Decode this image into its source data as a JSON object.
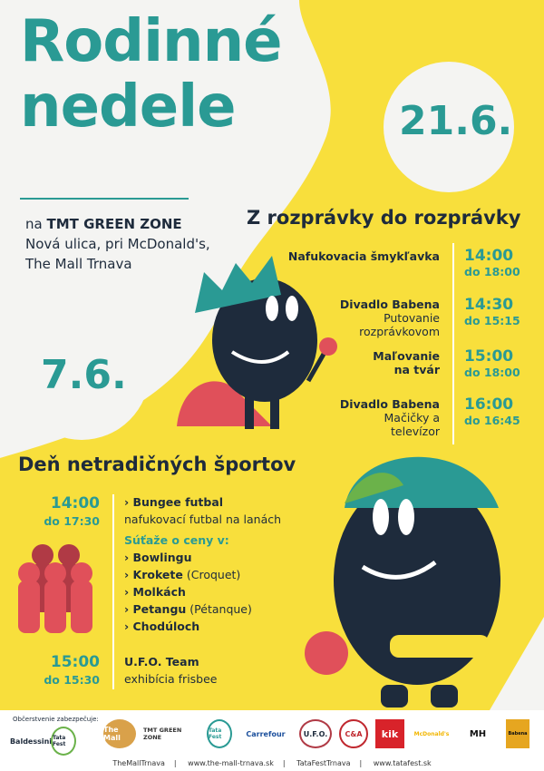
{
  "title": {
    "line1": "Rodinné",
    "line2": "nedele"
  },
  "venue": {
    "prefix": "na",
    "name": "TMT GREEN ZONE",
    "line2": "Nová ulica, pri McDonald's,",
    "line3": "The Mall Trnava"
  },
  "event1": {
    "date": "21.6.",
    "heading": "Z rozprávky do rozprávky",
    "items": [
      {
        "title": "Nafukovacia šmykľavka",
        "sub": "",
        "from": "14:00",
        "to": "do 18:00"
      },
      {
        "title": "Divadlo Babena",
        "sub": "Putovanie rozprávkovom",
        "from": "14:30",
        "to": "do 15:15"
      },
      {
        "title": "Maľovanie na tvár",
        "sub": "",
        "from": "15:00",
        "to": "do 18:00"
      },
      {
        "title": "Divadlo Babena",
        "sub": "Mačičky a televízor",
        "from": "16:00",
        "to": "do 16:45"
      }
    ]
  },
  "event2": {
    "date": "7.6.",
    "heading": "Deň netradičných športov",
    "block1": {
      "from": "14:00",
      "to": "do 17:30",
      "title": "› Bungee futbal",
      "sub": "nafukovací futbal na lanách",
      "contest": "Súťaže o ceny v:",
      "sports": [
        {
          "name": "› Bowlingu",
          "alt": ""
        },
        {
          "name": "› Krokete",
          "alt": "(Croquet)"
        },
        {
          "name": "› Molkách",
          "alt": ""
        },
        {
          "name": "› Petangu",
          "alt": "(Pétanque)"
        },
        {
          "name": "› Chodúloch",
          "alt": ""
        }
      ]
    },
    "block2": {
      "from": "15:00",
      "to": "do 15:30",
      "title": "U.F.O. Team",
      "sub": "exhibícia frisbee"
    }
  },
  "footer": {
    "catering": "Občerstvenie zabezpečuje:",
    "logos": [
      "Baldessini",
      "Tata Fest",
      "The Mall",
      "TMT GREEN ZONE",
      "Tata Fest",
      "Carrefour",
      "U.F.O.",
      "C&A",
      "kik",
      "McDonald's",
      "MH",
      "Babena"
    ],
    "links": [
      "TheMallTrnava",
      "www.the-mall-trnava.sk",
      "TataFestTrnava",
      "www.tatafest.sk"
    ]
  },
  "colors": {
    "yellow": "#f8df3c",
    "teal": "#2a9a94",
    "navy": "#1e2b3c",
    "red": "#e0505a"
  }
}
